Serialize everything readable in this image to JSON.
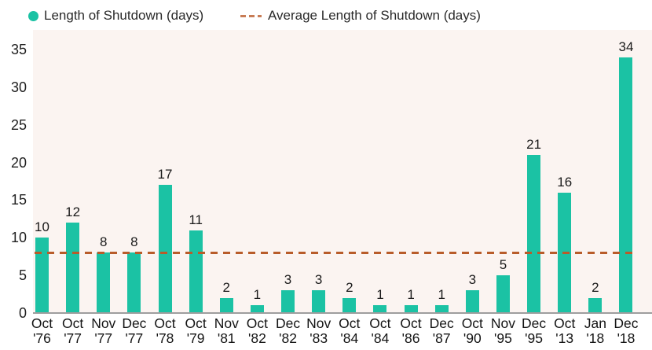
{
  "chart_data": {
    "type": "bar",
    "title": "",
    "series_label": "Length of Shutdown (days)",
    "average_label": "Average Length of Shutdown (days)",
    "average_line_y": 8,
    "categories": [
      "Oct '76",
      "Oct '77",
      "Nov '77",
      "Dec '77",
      "Oct '78",
      "Oct '79",
      "Nov '81",
      "Oct '82",
      "Dec '82",
      "Nov '83",
      "Oct '84",
      "Oct '84",
      "Oct '86",
      "Dec '87",
      "Oct '90",
      "Nov '95",
      "Dec '95",
      "Oct '13",
      "Jan '18",
      "Dec '18"
    ],
    "values": [
      10,
      12,
      8,
      8,
      17,
      11,
      2,
      1,
      3,
      3,
      2,
      1,
      1,
      1,
      3,
      5,
      21,
      16,
      2,
      34
    ],
    "y_ticks": [
      0,
      5,
      10,
      15,
      20,
      25,
      30,
      35
    ],
    "ylim": [
      0,
      37.6
    ],
    "grid": false,
    "legend_position": "top",
    "colors": {
      "bar": "#1bc2a4",
      "avg_line": "#b85c2a",
      "avg_line_legend": "#c87c55",
      "plot_background": "#fbf4f1",
      "axis_line": "#9e9e9e",
      "text": "#1a1a1a"
    }
  }
}
